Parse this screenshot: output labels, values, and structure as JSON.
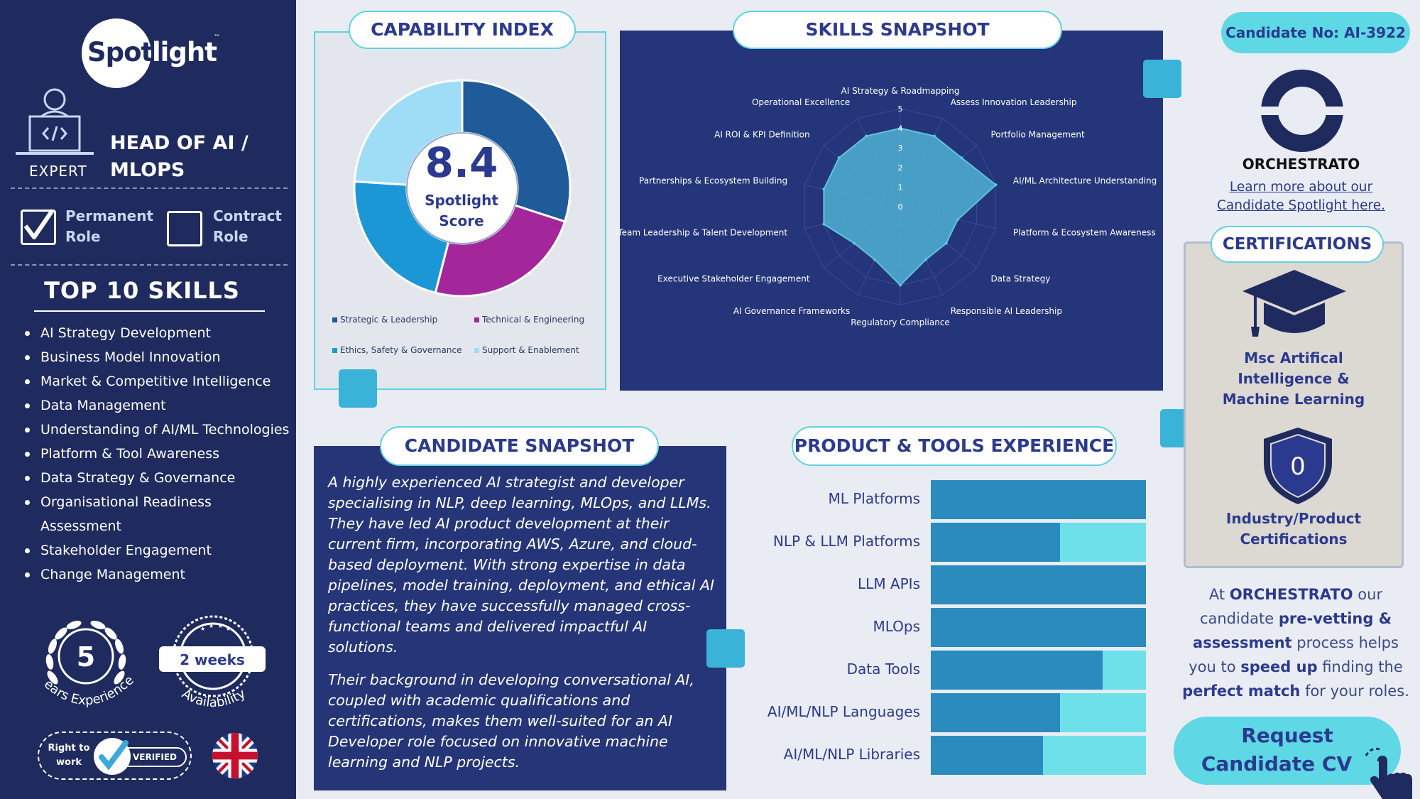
{
  "sidebar": {
    "logo": {
      "part1": "Spot",
      "part2": "light",
      "tm": "™"
    },
    "level": "EXPERT",
    "role_line1": "HEAD OF AI /",
    "role_line2": "MLOPS",
    "role_types": [
      {
        "line1": "Permanent",
        "line2": "Role",
        "checked": true
      },
      {
        "line1": "Contract",
        "line2": "Role",
        "checked": false
      }
    ],
    "top_skills_title": "TOP 10 SKILLS",
    "top_skills": [
      "AI Strategy Development",
      "Business Model Innovation",
      "Market & Competitive Intelligence",
      "Data Management",
      "Understanding of AI/ML Technologies",
      "Platform & Tool Awareness",
      "Data Strategy & Governance",
      "Organisational Readiness Assessment",
      "Stakeholder Engagement",
      "Change Management"
    ],
    "experience": {
      "value": "5",
      "label": "Years Experience"
    },
    "availability": {
      "value": "2 weeks",
      "label": "Availability"
    },
    "right_to_work": {
      "line1": "Right to",
      "line2": "work",
      "verified": "VERIFIED"
    }
  },
  "capability": {
    "title": "CAPABILITY INDEX",
    "score": "8.4",
    "score_label1": "Spotlight",
    "score_label2": "Score",
    "legend": [
      {
        "label": "Strategic & Leadership",
        "color": "#1f5a99"
      },
      {
        "label": "Technical & Engineering",
        "color": "#a3279b"
      },
      {
        "label": "Ethics, Safety & Governance",
        "color": "#1c97d6"
      },
      {
        "label": "Support & Enablement",
        "color": "#9fdcf6"
      }
    ],
    "chart_data": {
      "type": "pie",
      "categories": [
        "Strategic & Leadership",
        "Technical & Engineering",
        "Ethics, Safety & Governance",
        "Support & Enablement"
      ],
      "values": [
        30,
        24,
        22,
        24
      ]
    }
  },
  "skills": {
    "title": "SKILLS SNAPSHOT",
    "chart_data": {
      "type": "radar",
      "categories": [
        "AI Strategy & Roadmapping",
        "Assess Innovation Leadership",
        "Portfolio Management",
        "AI/ML Architecture Understanding",
        "Platform & Ecosystem Awareness",
        "Data Strategy",
        "Responsible AI Leadership",
        "Regulatory Compliance",
        "AI Governance Frameworks",
        "Executive Stakeholder Engagement",
        "Team Leadership & Talent Development",
        "Partnerships & Ecosystem Building",
        "AI ROI & KPI Definition",
        "Operational Excellence"
      ],
      "values": [
        4,
        4,
        4,
        5,
        3,
        3,
        3,
        4,
        3,
        3,
        4,
        4,
        4,
        4
      ],
      "rlim": [
        0,
        5
      ],
      "ticks": [
        "0",
        "1",
        "2",
        "3",
        "4",
        "5"
      ]
    }
  },
  "candidate": {
    "title": "CANDIDATE SNAPSHOT",
    "para1": "A highly experienced AI strategist and developer specialising in NLP, deep learning, MLOps, and LLMs. They have led AI product development at their current firm, incorporating AWS, Azure, and cloud-based deployment. With strong expertise in data pipelines, model training, deployment, and ethical AI practices, they have successfully managed cross-functional teams and delivered impactful AI solutions.",
    "para2": "Their background in developing conversational AI, coupled with academic qualifications and certifications, makes them well-suited for an AI Developer role focused on innovative machine learning and NLP projects."
  },
  "tools": {
    "title": "PRODUCT & TOOLS EXPERIENCE",
    "chart_data": {
      "type": "bar",
      "orientation": "horizontal",
      "categories": [
        "ML Platforms",
        "NLP & LLM Platforms",
        "LLM APIs",
        "MLOps",
        "Data Tools",
        "AI/ML/NLP Languages",
        "AI/ML/NLP Libraries"
      ],
      "values": [
        1.0,
        0.6,
        1.0,
        1.0,
        0.8,
        0.6,
        0.52
      ],
      "xlim": [
        0,
        1
      ]
    }
  },
  "right": {
    "candidate_no": "Candidate No:  AI-3922",
    "company": "ORCHESTRATO",
    "learn_line1": "Learn more about our",
    "learn_line2": "Candidate Spotlight here.",
    "certs_title": "CERTIFICATIONS",
    "degree": [
      "Msc Artifical",
      "Intelligence &",
      "Machine Learning"
    ],
    "cert_count": "0",
    "cert_label": [
      "Industry/Product",
      "Certifications"
    ],
    "pitch": {
      "p1": "At ",
      "b1": "ORCHESTRATO",
      "p2": " our candidate ",
      "b2": "pre-vetting & assessment",
      "p3": " process helps you to ",
      "b3": "speed up",
      "p4": " finding the ",
      "b4": "perfect match",
      "p5": " for your roles."
    },
    "cta_line1": "Request",
    "cta_line2": "Candidate CV"
  },
  "colors": {
    "navy": "#1f2b5e",
    "accent": "#5ed8e5",
    "panel": "#24357a",
    "bar": "#2a8bbf",
    "bar_bg": "#6ee0ea"
  }
}
